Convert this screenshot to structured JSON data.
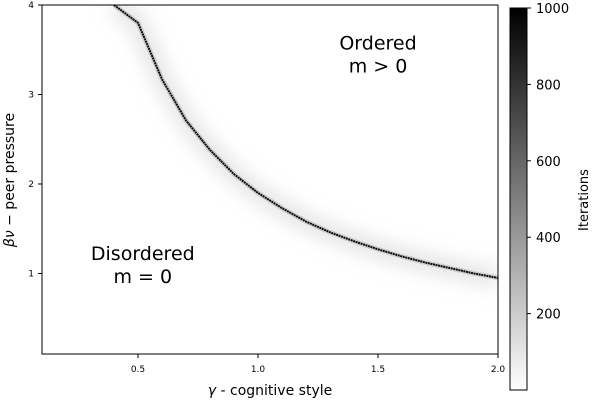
{
  "chart_data": {
    "type": "heatmap",
    "title": "",
    "xlabel": "γ - cognitive style",
    "xlabel_symbol": "γ",
    "xlabel_text": " - cognitive style",
    "ylabel": "βν − peer pressure",
    "ylabel_symbol": "βν",
    "ylabel_text": " − peer pressure",
    "xlim": [
      0.1,
      2.0
    ],
    "ylim": [
      0.1,
      4.0
    ],
    "xticks": [
      0.5,
      1.0,
      1.5,
      2.0
    ],
    "xtick_labels": [
      "0.5",
      "1.0",
      "1.5",
      "2.0"
    ],
    "yticks": [
      1,
      2,
      3,
      4
    ],
    "ytick_labels": [
      "1",
      "2",
      "3",
      "4"
    ],
    "critical_curve": {
      "relation": "βν = 1.9 / γ",
      "x": [
        0.4,
        0.5,
        0.6,
        0.7,
        0.8,
        0.9,
        1.0,
        1.1,
        1.2,
        1.3,
        1.4,
        1.5,
        1.6,
        1.7,
        1.8,
        1.9,
        2.0
      ],
      "y": [
        4.0,
        3.8,
        3.17,
        2.71,
        2.38,
        2.11,
        1.9,
        1.73,
        1.58,
        1.46,
        1.36,
        1.27,
        1.19,
        1.12,
        1.06,
        1.0,
        0.95
      ],
      "peak_iterations": 1000
    },
    "annotations": [
      {
        "id": "ordered",
        "lines": [
          "Ordered",
          "m > 0"
        ],
        "x": 1.5,
        "y": 3.5
      },
      {
        "id": "disordered",
        "lines": [
          "Disordered",
          "m = 0"
        ],
        "x": 0.52,
        "y": 1.15
      }
    ],
    "colorbar": {
      "label": "Iterations",
      "min": 0,
      "max": 1000,
      "ticks": [
        200,
        400,
        600,
        800,
        1000
      ],
      "tick_labels": [
        "200",
        "400",
        "600",
        "800",
        "1000"
      ],
      "colormap": "gray_r"
    },
    "grid": false,
    "legend": "none"
  }
}
